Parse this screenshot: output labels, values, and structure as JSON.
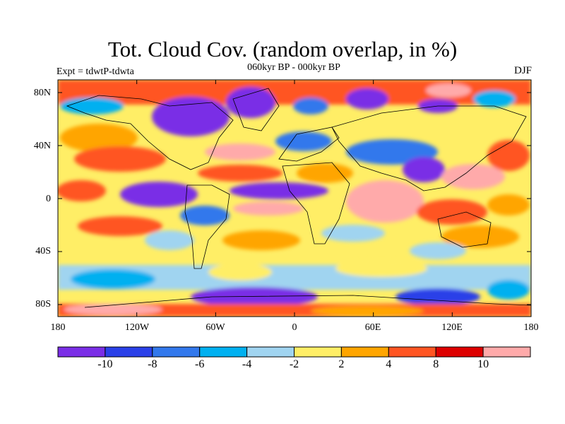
{
  "title": "Tot. Cloud Cov. (random overlap, in %)",
  "subtitle": "060kyr BP - 000kyr BP",
  "left_label": "Expt = tdwtP-tdwta",
  "right_label": "DJF",
  "lat_ticks": [
    "80N",
    "40N",
    "0",
    "40S",
    "80S"
  ],
  "lon_ticks": [
    "180",
    "120W",
    "60W",
    "0",
    "60E",
    "120E",
    "180"
  ],
  "colorbar": {
    "colors": [
      "#7a2ee6",
      "#2a40e8",
      "#3278ec",
      "#00b0f0",
      "#a0d4f0",
      "#ffee66",
      "#ffa500",
      "#ff5522",
      "#dd0000",
      "#ffaaaa"
    ],
    "labels": [
      "-10",
      "-8",
      "-6",
      "-4",
      "-2",
      "2",
      "4",
      "8",
      "10"
    ]
  }
}
